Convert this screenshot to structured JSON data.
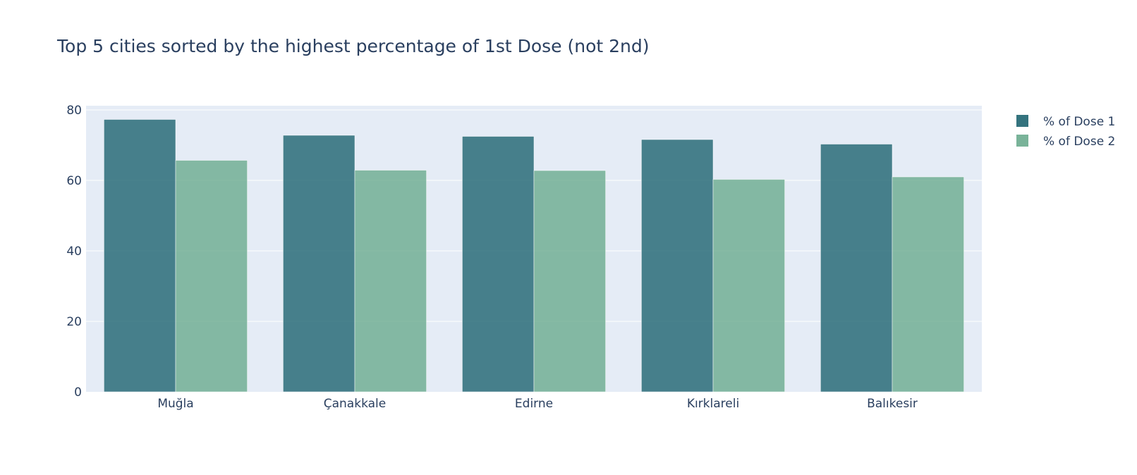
{
  "chart_data": {
    "type": "bar",
    "title": "Top 5 cities sorted by the highest percentage of 1st Dose (not 2nd)",
    "xlabel": "",
    "ylabel": "",
    "categories": [
      "Muğla",
      "Çanakkale",
      "Edirne",
      "Kırklareli",
      "Balıkesir"
    ],
    "series": [
      {
        "name": "% of Dose 1",
        "values": [
          77.3,
          72.8,
          72.5,
          71.6,
          70.3
        ],
        "color": "#1e6470"
      },
      {
        "name": "% of Dose 2",
        "values": [
          65.7,
          62.9,
          62.8,
          60.3,
          61.0
        ],
        "color": "#6aab8e"
      }
    ],
    "ylim": [
      0,
      80
    ],
    "yticks": [
      0,
      20,
      40,
      60,
      80
    ],
    "grid": true,
    "legend_position": "top-right",
    "plot_background": "#e5ecf6",
    "text_color": "#2a3f5f"
  }
}
